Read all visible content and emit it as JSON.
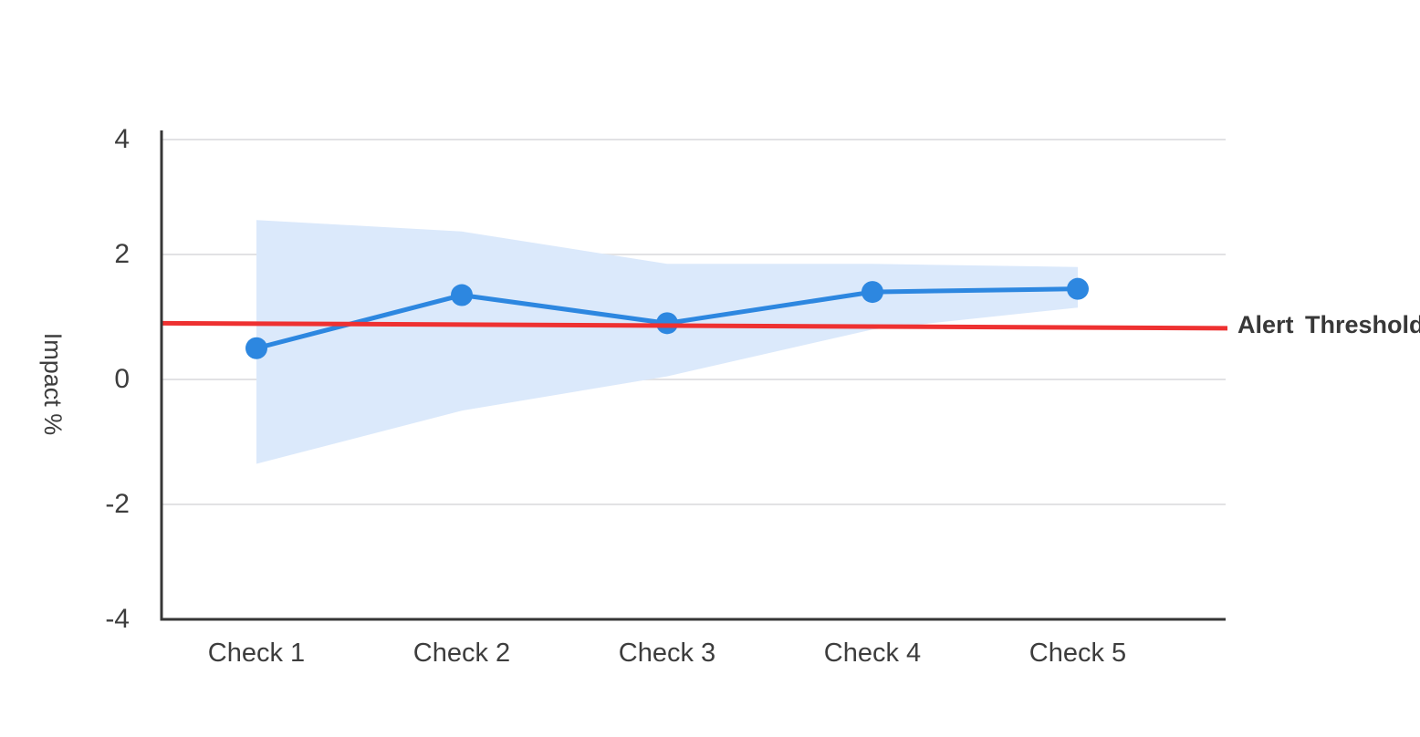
{
  "chart_data": {
    "type": "line",
    "title": "",
    "categories": [
      "Check 1",
      "Check 2",
      "Check 3",
      "Check 4",
      "Check 5"
    ],
    "series": [
      {
        "name": "Impact",
        "values": [
          0.5,
          1.35,
          0.9,
          1.4,
          1.45
        ]
      }
    ],
    "confidence_band": {
      "upper": [
        2.6,
        2.4,
        1.85,
        1.85,
        1.8
      ],
      "lower": [
        -1.35,
        -0.5,
        0.05,
        0.8,
        1.15
      ]
    },
    "threshold": {
      "label": "Alert Threshold",
      "value": 0.9,
      "value_end": 0.82
    },
    "xlabel": "",
    "ylabel": "Impact %",
    "yticks": [
      4,
      2,
      0,
      -2,
      -4
    ],
    "ylim": [
      -4.2,
      4.2
    ],
    "grid": true,
    "legend_position": "none",
    "colors": {
      "line": "#2D87E0",
      "marker": "#2D87E0",
      "band": "#DBE9FB",
      "threshold": "#EE3131",
      "axis": "#363636",
      "gridline": "#E2E2E4",
      "tick_text": "#3D3D3D",
      "threshold_text": "#383838"
    }
  }
}
